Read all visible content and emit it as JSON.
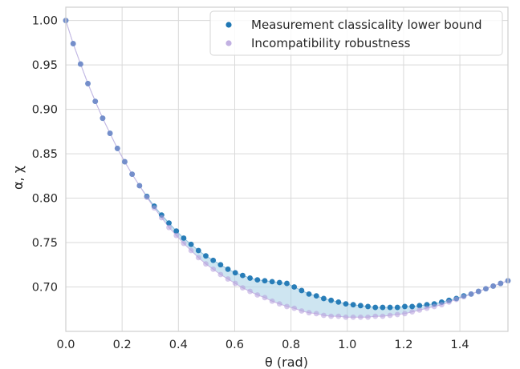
{
  "chart_data": {
    "type": "scatter",
    "title": "",
    "xlabel": "θ (rad)",
    "ylabel": "α, χ",
    "xlim": [
      0.0,
      1.5708
    ],
    "ylim": [
      0.65,
      1.015
    ],
    "x_ticks": [
      "0.0",
      "0.2",
      "0.4",
      "0.6",
      "0.8",
      "1.0",
      "1.2",
      "1.4"
    ],
    "y_ticks": [
      "0.70",
      "0.75",
      "0.80",
      "0.85",
      "0.90",
      "0.95",
      "1.00"
    ],
    "grid": true,
    "legend_position": "top-right",
    "fill_between": true,
    "colors": {
      "lower_bound": "#1f77b4",
      "robustness": "#b39ddb",
      "fill": "#a6cfe6",
      "grid": "#d9d9d9",
      "spine": "#cfcfcf"
    },
    "series": [
      {
        "name": "Measurement classicality lower bound",
        "x": [
          0.0,
          0.0262,
          0.0524,
          0.0785,
          0.1047,
          0.1309,
          0.1571,
          0.1833,
          0.2094,
          0.2356,
          0.2618,
          0.288,
          0.3142,
          0.3403,
          0.3665,
          0.3927,
          0.4189,
          0.4451,
          0.4712,
          0.4974,
          0.5236,
          0.5498,
          0.576,
          0.6021,
          0.6283,
          0.6545,
          0.6807,
          0.7069,
          0.733,
          0.7592,
          0.7854,
          0.8116,
          0.8378,
          0.8639,
          0.8901,
          0.9163,
          0.9425,
          0.9687,
          0.9948,
          1.021,
          1.0472,
          1.0734,
          1.0996,
          1.1257,
          1.1519,
          1.1781,
          1.2043,
          1.2305,
          1.2566,
          1.2828,
          1.309,
          1.3352,
          1.3614,
          1.3875,
          1.4137,
          1.4399,
          1.4661,
          1.4923,
          1.5184,
          1.5446,
          1.5708
        ],
        "values": [
          1.0,
          0.974,
          0.951,
          0.929,
          0.909,
          0.89,
          0.873,
          0.856,
          0.841,
          0.827,
          0.814,
          0.802,
          0.791,
          0.781,
          0.772,
          0.763,
          0.755,
          0.748,
          0.741,
          0.735,
          0.73,
          0.725,
          0.72,
          0.716,
          0.713,
          0.71,
          0.708,
          0.707,
          0.706,
          0.705,
          0.704,
          0.7,
          0.696,
          0.692,
          0.69,
          0.687,
          0.685,
          0.683,
          0.681,
          0.68,
          0.679,
          0.678,
          0.677,
          0.677,
          0.677,
          0.677,
          0.678,
          0.678,
          0.679,
          0.68,
          0.681,
          0.683,
          0.685,
          0.687,
          0.69,
          0.692,
          0.695,
          0.698,
          0.701,
          0.704,
          0.707
        ]
      },
      {
        "name": "Incompatibility robustness",
        "x": [
          0.0,
          0.0262,
          0.0524,
          0.0785,
          0.1047,
          0.1309,
          0.1571,
          0.1833,
          0.2094,
          0.2356,
          0.2618,
          0.288,
          0.3142,
          0.3403,
          0.3665,
          0.3927,
          0.4189,
          0.4451,
          0.4712,
          0.4974,
          0.5236,
          0.5498,
          0.576,
          0.6021,
          0.6283,
          0.6545,
          0.6807,
          0.7069,
          0.733,
          0.7592,
          0.7854,
          0.8116,
          0.8378,
          0.8639,
          0.8901,
          0.9163,
          0.9425,
          0.9687,
          0.9948,
          1.021,
          1.0472,
          1.0734,
          1.0996,
          1.1257,
          1.1519,
          1.1781,
          1.2043,
          1.2305,
          1.2566,
          1.2828,
          1.309,
          1.3352,
          1.3614,
          1.3875,
          1.4137,
          1.4399,
          1.4661,
          1.4923,
          1.5184,
          1.5446,
          1.5708
        ],
        "values": [
          1.0,
          0.974,
          0.951,
          0.929,
          0.909,
          0.89,
          0.873,
          0.856,
          0.841,
          0.827,
          0.814,
          0.801,
          0.789,
          0.778,
          0.767,
          0.758,
          0.749,
          0.741,
          0.733,
          0.726,
          0.72,
          0.714,
          0.709,
          0.704,
          0.699,
          0.695,
          0.691,
          0.688,
          0.684,
          0.681,
          0.678,
          0.676,
          0.673,
          0.671,
          0.67,
          0.668,
          0.667,
          0.667,
          0.666,
          0.666,
          0.666,
          0.666,
          0.667,
          0.667,
          0.668,
          0.669,
          0.67,
          0.672,
          0.674,
          0.676,
          0.678,
          0.68,
          0.683,
          0.686,
          0.689,
          0.692,
          0.695,
          0.698,
          0.701,
          0.704,
          0.707
        ]
      }
    ]
  }
}
